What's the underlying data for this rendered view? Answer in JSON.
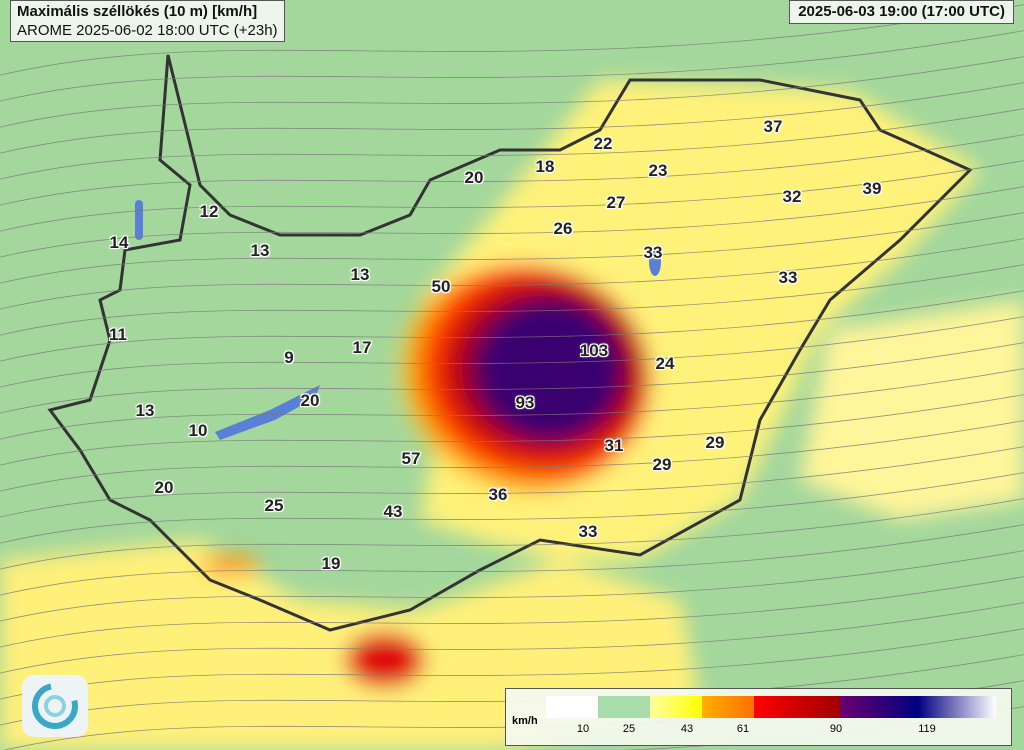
{
  "header": {
    "title": "Maximális széllökés (10 m) [km/h]",
    "subtitle": "AROME 2025-06-02 18:00 UTC (+23h)",
    "valid_time": "2025-06-03 19:00 (17:00 UTC)"
  },
  "station_values": [
    "37",
    "22",
    "18",
    "23",
    "20",
    "39",
    "32",
    "27",
    "12",
    "26",
    "14",
    "13",
    "33",
    "33",
    "13",
    "50",
    "11",
    "103",
    "17",
    "9",
    "24",
    "20",
    "93",
    "13",
    "10",
    "31",
    "29",
    "57",
    "29",
    "20",
    "36",
    "25",
    "43",
    "33",
    "19"
  ],
  "legend": {
    "unit": "km/h",
    "ticks": [
      "10",
      "25",
      "43",
      "61",
      "90",
      "119"
    ],
    "colors": [
      "#ffffff",
      "#a8dca8",
      "#ffff66",
      "#ff9900",
      "#ff0000",
      "#a00000",
      "#5a0070",
      "#000080",
      "#ffffff"
    ]
  },
  "colors": {
    "land": "#9fd69a",
    "border": "#333333",
    "water": "#5a7fd6"
  },
  "logo": "hungarian-met-service-logo"
}
